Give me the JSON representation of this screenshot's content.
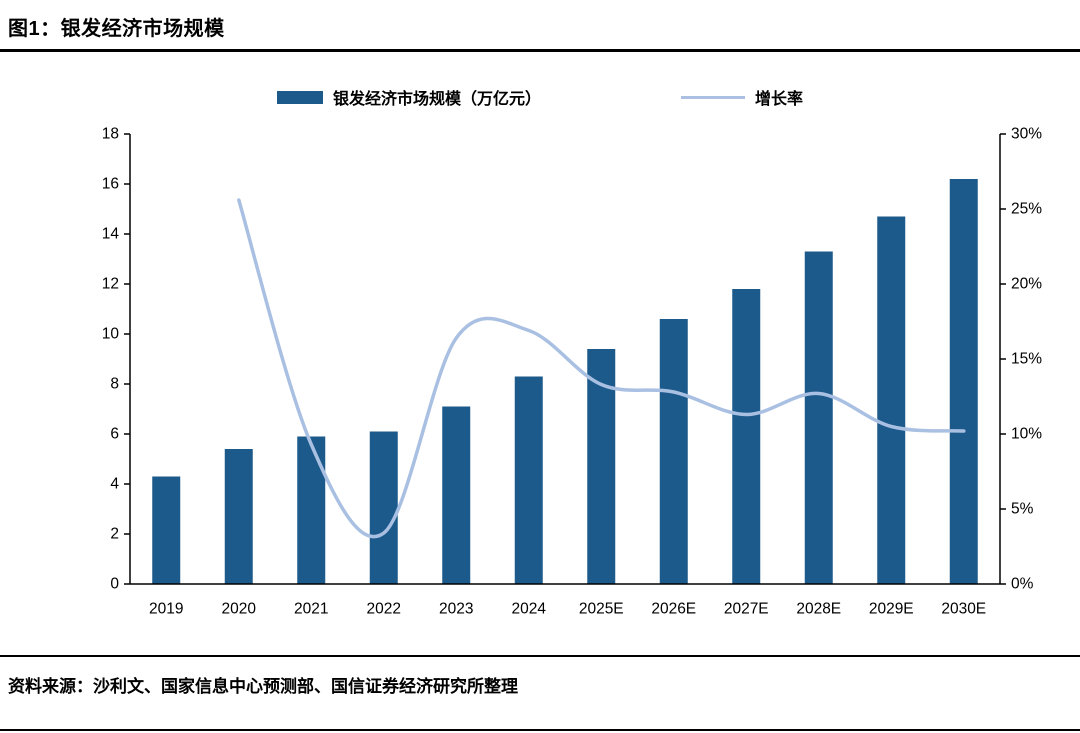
{
  "figure": {
    "title": "图1：银发经济市场规模",
    "source": "资料来源：沙利文、国家信息中心预测部、国信证券经济研究所整理"
  },
  "chart_data": {
    "type": "bar",
    "subtype": "bar+line combo, dual axis",
    "title": "银发经济市场规模",
    "categories": [
      "2019",
      "2020",
      "2021",
      "2022",
      "2023",
      "2024",
      "2025E",
      "2026E",
      "2027E",
      "2028E",
      "2029E",
      "2030E"
    ],
    "series": [
      {
        "name": "银发经济市场规模（万亿元）",
        "type": "bar",
        "axis": "left",
        "color": "#1b5a8a",
        "values": [
          4.3,
          5.4,
          5.9,
          6.1,
          7.1,
          8.3,
          9.4,
          10.6,
          11.8,
          13.3,
          14.7,
          16.2
        ]
      },
      {
        "name": "增长率",
        "type": "line",
        "axis": "right",
        "color": "#a9c0e2",
        "values": [
          null,
          25.6,
          9.3,
          3.4,
          16.4,
          16.9,
          13.3,
          12.8,
          11.3,
          12.7,
          10.5,
          10.2
        ]
      }
    ],
    "left_axis": {
      "min": 0,
      "max": 18,
      "step": 2,
      "tick_labels": [
        "0",
        "2",
        "4",
        "6",
        "8",
        "10",
        "12",
        "14",
        "16",
        "18"
      ]
    },
    "right_axis": {
      "min": 0,
      "max": 30,
      "step": 5,
      "tick_labels": [
        "0%",
        "5%",
        "10%",
        "15%",
        "20%",
        "25%",
        "30%"
      ]
    },
    "legend_position": "top",
    "grid": false,
    "axis_color": "#000000"
  }
}
